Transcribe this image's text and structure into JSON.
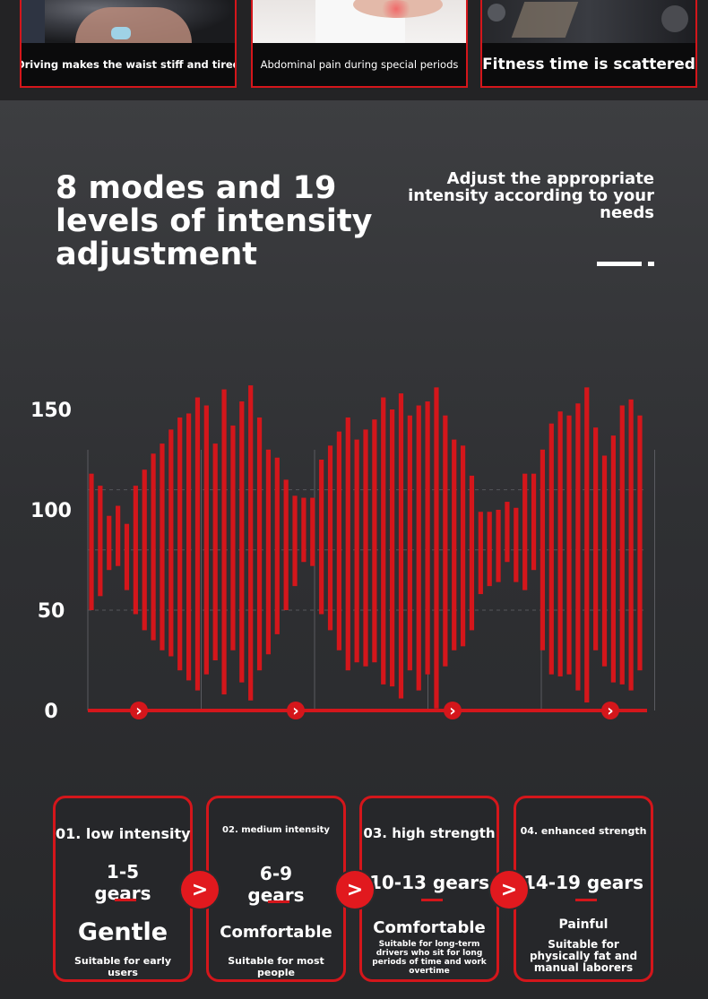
{
  "scenarios": [
    {
      "caption": "Driving makes the waist stiff and tired"
    },
    {
      "caption": "Abdominal pain during special periods"
    },
    {
      "caption": "Fitness time is scattered"
    }
  ],
  "headline": {
    "line1": "8 modes and 19",
    "line2": "levels of intensity",
    "line3": "adjustment"
  },
  "subtitle": {
    "line1": "Adjust the appropriate",
    "line2": "intensity according to your",
    "line3": "needs"
  },
  "colors": {
    "accent": "#d4161b",
    "background": "#2f3033"
  },
  "chart_data": {
    "type": "bar",
    "title": "",
    "xlabel": "",
    "ylabel": "",
    "ylim": [
      0,
      150
    ],
    "yticks": [
      "0",
      "50",
      "100",
      "150"
    ],
    "series": [
      {
        "values_low": [
          50,
          57,
          70,
          72,
          60,
          48,
          40,
          35,
          30,
          27,
          20,
          15,
          10,
          18,
          25,
          8,
          30,
          14,
          5,
          20,
          28,
          38,
          50,
          62,
          74,
          72,
          48,
          40,
          30,
          20,
          24,
          22,
          24,
          13,
          12,
          6,
          20,
          10,
          18,
          1,
          22,
          30,
          32,
          40,
          58,
          62,
          64,
          74,
          64,
          60,
          70,
          30,
          18,
          17,
          18,
          10,
          4,
          30,
          22,
          14,
          13,
          10,
          20
        ],
        "values_high": [
          118,
          112,
          97,
          102,
          93,
          112,
          120,
          128,
          133,
          140,
          146,
          148,
          156,
          152,
          133,
          160,
          142,
          154,
          162,
          146,
          130,
          126,
          115,
          107,
          106,
          106,
          125,
          132,
          139,
          146,
          135,
          140,
          145,
          156,
          150,
          158,
          147,
          152,
          154,
          161,
          147,
          135,
          132,
          117,
          99,
          99,
          100,
          104,
          101,
          118,
          118,
          130,
          143,
          149,
          147,
          153,
          161,
          141,
          127,
          137,
          152,
          155,
          147
        ]
      }
    ]
  },
  "cards": [
    {
      "title": "01. low intensity",
      "gears": "1-5\ngears",
      "level": "Gentle",
      "desc": "Suitable for early users"
    },
    {
      "title": "02. medium intensity",
      "gears": "6-9\ngears",
      "level": "Comfortable",
      "desc": "Suitable for most people"
    },
    {
      "title": "03. high strength",
      "gears": "10-13 gears",
      "level": "Comfortable",
      "desc": "Suitable for long-term drivers who sit for long periods of time and work overtime"
    },
    {
      "title": "04. enhanced strength",
      "gears": "14-19 gears",
      "level": "Painful",
      "desc": "Suitable for physically fat and manual laborers"
    }
  ],
  "arrow_glyph": ">",
  "chevron_glyph": "›"
}
